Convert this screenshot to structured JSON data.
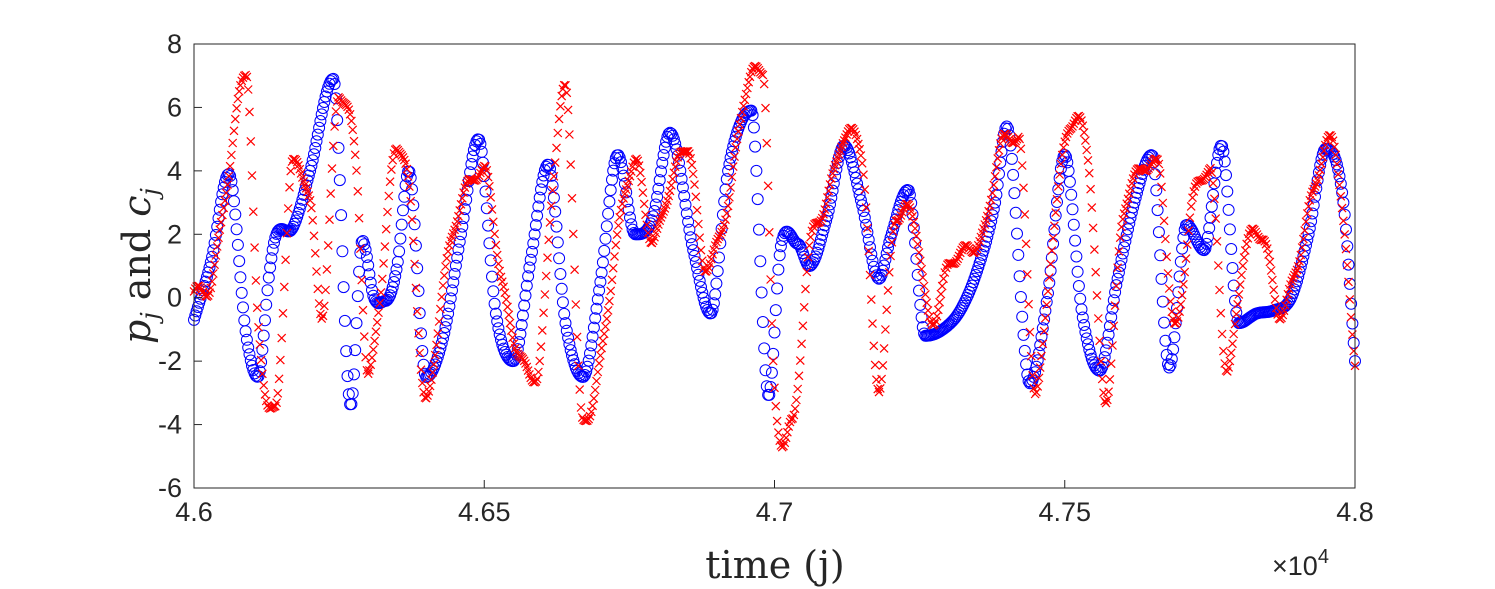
{
  "chart_data": {
    "type": "scatter",
    "title": "",
    "xlabel": "time (j)",
    "ylabel_parts": {
      "p": "p",
      "and": "and",
      "c": "c",
      "sub": "j"
    },
    "x_multiplier": {
      "times": "×10",
      "exp": "4"
    },
    "xlim": [
      4.6,
      4.8
    ],
    "ylim": [
      -6,
      8
    ],
    "x_ticks": [
      "4.6",
      "4.65",
      "4.7",
      "4.75",
      "4.8"
    ],
    "x_tick_values": [
      4.6,
      4.65,
      4.7,
      4.75,
      4.8
    ],
    "y_ticks": [
      "8",
      "6",
      "4",
      "2",
      "0",
      "-2",
      "-4",
      "-6"
    ],
    "y_tick_values": [
      8,
      6,
      4,
      2,
      0,
      -2,
      -4,
      -6
    ],
    "grid": false,
    "series": [
      {
        "name": "p_j",
        "marker": "o",
        "color": "#0000ff",
        "x": [
          4.6,
          4.603,
          4.606,
          4.609,
          4.611,
          4.613,
          4.614,
          4.617,
          4.62,
          4.624,
          4.627,
          4.629,
          4.631,
          4.633,
          4.635,
          4.637,
          4.64,
          4.643,
          4.646,
          4.649,
          4.652,
          4.655,
          4.658,
          4.661,
          4.664,
          4.667,
          4.67,
          4.673,
          4.676,
          4.679,
          4.682,
          4.686,
          4.689,
          4.692,
          4.696,
          4.699,
          4.701,
          4.704,
          4.706,
          4.709,
          4.712,
          4.715,
          4.718,
          4.72,
          4.723,
          4.726,
          4.729,
          4.732,
          4.735,
          4.738,
          4.74,
          4.744,
          4.747,
          4.75,
          4.753,
          4.756,
          4.759,
          4.762,
          4.765,
          4.768,
          4.771,
          4.774,
          4.777,
          4.78,
          4.783,
          4.786,
          4.789,
          4.792,
          4.795,
          4.798,
          4.8
        ],
        "y": [
          -0.7,
          1.2,
          3.9,
          -1.2,
          -2.5,
          0.8,
          1.9,
          2.2,
          4.0,
          6.9,
          -3.4,
          1.8,
          0.0,
          -0.1,
          1.0,
          4.0,
          -2.5,
          -1.2,
          2.0,
          5.0,
          -0.5,
          -2.0,
          1.2,
          4.2,
          -0.8,
          -2.5,
          0.5,
          4.5,
          2.0,
          2.5,
          5.2,
          1.5,
          -0.5,
          4.0,
          5.9,
          -3.1,
          1.5,
          1.7,
          1.0,
          2.5,
          4.8,
          3.0,
          0.6,
          1.9,
          3.4,
          -1.2,
          -1.0,
          -0.4,
          0.9,
          3.0,
          5.4,
          -2.7,
          0.0,
          4.5,
          -0.5,
          -2.3,
          0.5,
          3.0,
          4.5,
          -2.2,
          2.3,
          1.5,
          4.8,
          -0.8,
          -0.5,
          -0.4,
          0.0,
          2.0,
          4.7,
          3.0,
          -2.0
        ]
      },
      {
        "name": "c_j",
        "marker": "x",
        "color": "#ff0000",
        "x": [
          4.6,
          4.603,
          4.606,
          4.609,
          4.611,
          4.614,
          4.617,
          4.62,
          4.622,
          4.625,
          4.628,
          4.63,
          4.632,
          4.635,
          4.637,
          4.64,
          4.643,
          4.646,
          4.65,
          4.653,
          4.656,
          4.659,
          4.662,
          4.664,
          4.667,
          4.67,
          4.673,
          4.676,
          4.679,
          4.682,
          4.685,
          4.688,
          4.692,
          4.695,
          4.698,
          4.7,
          4.703,
          4.706,
          4.709,
          4.712,
          4.715,
          4.718,
          4.721,
          4.724,
          4.727,
          4.73,
          4.733,
          4.736,
          4.739,
          4.742,
          4.745,
          4.748,
          4.751,
          4.754,
          4.757,
          4.76,
          4.763,
          4.766,
          4.769,
          4.772,
          4.775,
          4.778,
          4.781,
          4.784,
          4.787,
          4.79,
          4.793,
          4.796,
          4.8
        ],
        "y": [
          0.2,
          0.5,
          4.0,
          7.2,
          -0.8,
          -3.6,
          4.2,
          3.0,
          -0.5,
          6.4,
          4.0,
          -2.5,
          0.0,
          4.8,
          3.5,
          -3.3,
          0.5,
          3.0,
          4.0,
          0.5,
          -1.8,
          -2.5,
          4.0,
          6.6,
          -4.0,
          -2.0,
          2.0,
          4.3,
          1.8,
          3.5,
          4.8,
          1.0,
          3.0,
          6.5,
          7.2,
          -3.0,
          -4.0,
          1.5,
          3.0,
          5.0,
          4.5,
          -2.8,
          2.6,
          2.5,
          -0.8,
          1.0,
          1.5,
          2.0,
          4.8,
          5.0,
          -3.0,
          2.0,
          5.5,
          4.5,
          -3.2,
          2.5,
          4.0,
          4.2,
          -1.0,
          3.0,
          4.0,
          -2.3,
          1.5,
          2.0,
          -0.5,
          1.0,
          3.5,
          5.0,
          -2.0
        ]
      }
    ]
  }
}
